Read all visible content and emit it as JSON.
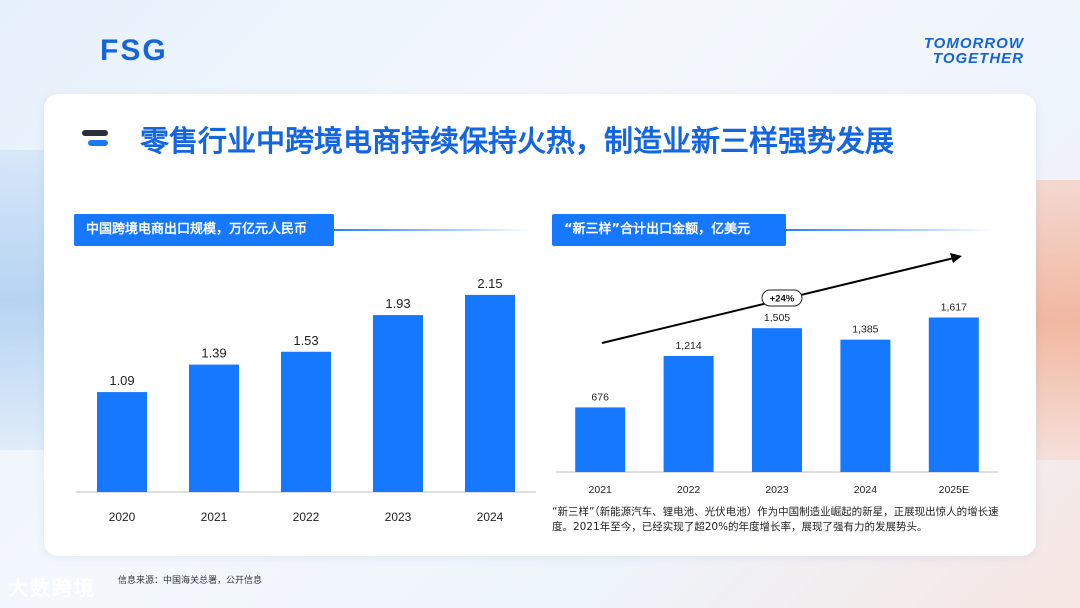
{
  "header": {
    "logo": "FSG",
    "brand_line1": "TOMORROW",
    "brand_line2": "TOGETHER"
  },
  "title": "零售行业中跨境电商持续保持火热，制造业新三样强势发展",
  "left_section": {
    "heading": "中国跨境电商出口规模，万亿元人民币"
  },
  "right_section": {
    "heading": "“新三样”合计出口金额，亿美元",
    "growth_label": "+24%"
  },
  "note": "“新三样”（新能源汽车、锂电池、光伏电池）作为中国制造业崛起的新星，正展现出惊人的增长速度。2021年至今，已经实现了超20%的年度增长率，展现了强有力的发展势头。",
  "source": "信息来源：中国海关总署，公开信息",
  "watermark": "大数跨境",
  "colors": {
    "bar": "#1677ff",
    "title": "#1466e0",
    "arrow": "#000000"
  },
  "chart_data": [
    {
      "type": "bar",
      "title": "中国跨境电商出口规模，万亿元人民币",
      "categories": [
        "2020",
        "2021",
        "2022",
        "2023",
        "2024"
      ],
      "values": [
        1.09,
        1.39,
        1.53,
        1.93,
        2.15
      ],
      "value_labels": [
        "1.09",
        "1.39",
        "1.53",
        "1.93",
        "2.15"
      ],
      "ylim": [
        0,
        2.4
      ],
      "grid": false,
      "legend": "none"
    },
    {
      "type": "bar",
      "title": "“新三样”合计出口金额，亿美元",
      "categories": [
        "2021",
        "2022",
        "2023",
        "2024",
        "2025E"
      ],
      "values": [
        676,
        1214,
        1505,
        1385,
        1617
      ],
      "value_labels": [
        "676",
        "1,214",
        "1,505",
        "1,385",
        "1,617"
      ],
      "ylim": [
        0,
        1800
      ],
      "grid": false,
      "legend": "none",
      "annotation": "+24%"
    }
  ]
}
